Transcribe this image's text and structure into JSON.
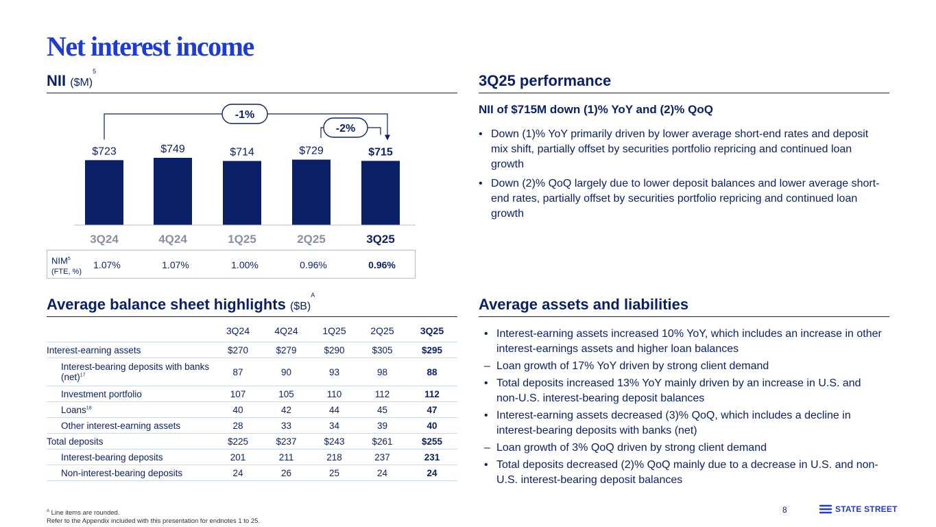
{
  "title": "Net interest income",
  "nii_section": {
    "heading": "NII",
    "unit": "($M)",
    "footnote_ref": "5"
  },
  "chart_data": {
    "type": "bar",
    "title": "NII ($M)",
    "categories": [
      "3Q24",
      "4Q24",
      "1Q25",
      "2Q25",
      "3Q25"
    ],
    "values": [
      723,
      749,
      714,
      729,
      715
    ],
    "value_labels": [
      "$723",
      "$749",
      "$714",
      "$729",
      "$715"
    ],
    "ylim": [
      0,
      749
    ],
    "yoy_change": "-1%",
    "qoq_change": "-2%",
    "highlight_index": 4
  },
  "nim": {
    "label": "NIM",
    "label_ref": "5",
    "sublabel": "(FTE, %)",
    "values": [
      "1.07%",
      "1.07%",
      "1.00%",
      "0.96%",
      "0.96%"
    ]
  },
  "performance": {
    "heading": "3Q25 performance",
    "subheading": "NII of $715M down (1)% YoY and (2)% QoQ",
    "bullets": [
      "Down (1)% YoY primarily driven by lower average short-end rates and deposit mix shift, partially offset by securities portfolio repricing and continued loan growth",
      "Down (2)% QoQ largely due to lower deposit balances and lower average short-end rates, partially offset by securities portfolio repricing and continued loan growth"
    ]
  },
  "balance_sheet": {
    "heading": "Average balance sheet highlights",
    "unit": "($B)",
    "unit_ref": "A",
    "columns": [
      "3Q24",
      "4Q24",
      "1Q25",
      "2Q25",
      "3Q25"
    ],
    "rows": [
      {
        "label": "Interest-earning assets",
        "ref": "",
        "values": [
          "$270",
          "$279",
          "$290",
          "$305",
          "$295"
        ]
      },
      {
        "label": "Interest-bearing deposits with banks (net)",
        "ref": "17",
        "values": [
          "87",
          "90",
          "93",
          "98",
          "88"
        ]
      },
      {
        "label": "Investment portfolio",
        "ref": "",
        "values": [
          "107",
          "105",
          "110",
          "112",
          "112"
        ]
      },
      {
        "label": "Loans",
        "ref": "18",
        "values": [
          "40",
          "42",
          "44",
          "45",
          "47"
        ]
      },
      {
        "label": "Other interest-earning assets",
        "ref": "",
        "values": [
          "28",
          "33",
          "34",
          "39",
          "40"
        ]
      },
      {
        "label": "Total deposits",
        "ref": "",
        "values": [
          "$225",
          "$237",
          "$243",
          "$261",
          "$255"
        ]
      },
      {
        "label": "Interest-bearing deposits",
        "ref": "",
        "values": [
          "201",
          "211",
          "218",
          "237",
          "231"
        ]
      },
      {
        "label": "Non-interest-bearing deposits",
        "ref": "",
        "values": [
          "24",
          "26",
          "25",
          "24",
          "24"
        ]
      }
    ]
  },
  "assets_liabilities": {
    "heading": "Average assets and liabilities",
    "items": [
      "Interest-earning assets increased 10% YoY, which includes an increase in other interest-earnings assets and higher loan balances",
      "Loan growth of 17% YoY driven by strong client demand",
      "Total deposits increased 13% YoY mainly driven by an increase in U.S. and non-U.S. interest-bearing deposit balances",
      "Interest-earning assets decreased (3)% QoQ, which includes a decline in interest-bearing deposits with banks (net)",
      "Loan growth of 3% QoQ driven by strong client demand",
      "Total deposits decreased (2)% QoQ mainly due to a decrease in U.S. and non-U.S. interest-bearing deposit balances"
    ]
  },
  "footer": {
    "note_ref": "A",
    "note": "Line items are rounded.",
    "appendix": "Refer to the Appendix included with this presentation for endnotes 1 to 25.",
    "page_number": "8",
    "logo_text": "STATE STREET"
  },
  "colors": {
    "navy": "#0b1f66",
    "brand_blue": "#1f3bd6",
    "rule": "#c9d7f0"
  }
}
